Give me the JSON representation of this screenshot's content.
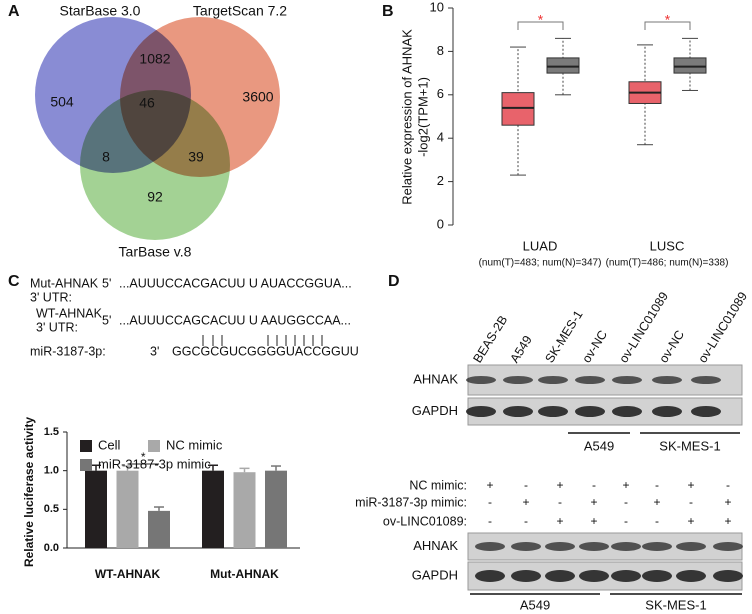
{
  "panel_labels": [
    "A",
    "B",
    "C",
    "D"
  ],
  "venn": {
    "sets": [
      "StarBase 3.0",
      "TargetScan 7.2",
      "TarBase v.8"
    ],
    "colors": [
      "#5b5fc4",
      "#e0704f",
      "#80c06b"
    ],
    "regions": [
      504,
      1082,
      3600,
      46,
      8,
      39,
      92
    ]
  },
  "chart_data": [
    {
      "type": "box",
      "y_label": [
        "Relative expression of AHNAK",
        "-log2(TPM+1)"
      ],
      "categories": [
        "LUAD",
        "LUSC"
      ],
      "category_notes": [
        "(num(T)=483; num(N)=347)",
        "(num(T)=486; num(N)=338)"
      ],
      "series": [
        {
          "color": "#e8636b",
          "values": [
            {
              "min": 2.3,
              "q1": 4.6,
              "median": 5.4,
              "q3": 6.1,
              "max": 8.2
            },
            {
              "min": 3.7,
              "q1": 5.6,
              "median": 6.1,
              "q3": 6.6,
              "max": 8.3
            }
          ]
        },
        {
          "color": "#7a7a7a",
          "values": [
            {
              "min": 6.0,
              "q1": 7.0,
              "median": 7.3,
              "q3": 7.7,
              "max": 8.6
            },
            {
              "min": 6.2,
              "q1": 7.0,
              "median": 7.3,
              "q3": 7.7,
              "max": 8.6
            }
          ]
        }
      ],
      "ylim": [
        0,
        10
      ],
      "yticks": [
        0,
        2,
        4,
        6,
        8,
        10
      ],
      "annotations": [
        "*",
        "*"
      ]
    },
    {
      "type": "bar",
      "y_label": "Relative luciferase activity",
      "categories": [
        "WT-AHNAK",
        "Mut-AHNAK"
      ],
      "series": [
        {
          "name": "Cell",
          "color": "#231f20",
          "values": [
            1.0,
            1.0
          ],
          "errors": [
            0.07,
            0.07
          ]
        },
        {
          "name": "NC mimic",
          "color": "#a9a9a9",
          "values": [
            1.0,
            0.98
          ],
          "errors": [
            0.06,
            0.05
          ]
        },
        {
          "name": "miR-3187-3p mimic",
          "color": "#767676",
          "values": [
            0.48,
            1.0
          ],
          "errors": [
            0.05,
            0.06
          ]
        }
      ],
      "ylim": [
        0,
        1.5
      ],
      "yticks": [
        {
          "value": 0,
          "label": "0.0"
        },
        0.5,
        {
          "value": 1,
          "label": "1.0"
        },
        1.5
      ],
      "annotations": [
        "*"
      ]
    }
  ],
  "sequences": {
    "rows": [
      {
        "name": "Mut-AHNAK",
        "sub": "3' UTR:",
        "end": "5'",
        "seq": "...AUUUCCACGACUU U AUACCGGUA..."
      },
      {
        "name": "WT-AHNAK",
        "sub": "3' UTR:",
        "end": "5'",
        "seq": "...AUUUCCAGCACUU U AAUGGCCAA..."
      },
      {
        "name": "miR-3187-3p:",
        "end": "3'",
        "seq": "GGCGCGUCGGGGUACCGGUU"
      }
    ]
  },
  "blots": {
    "top": {
      "lanes": [
        "BEAS-2B",
        "A549",
        "SK-MES-1",
        "ov-NC",
        "ov-LINC01089",
        "ov-NC",
        "ov-LINC01089"
      ],
      "rows": [
        "AHNAK",
        "GAPDH"
      ],
      "groups": [
        "A549",
        "SK-MES-1"
      ]
    },
    "bottom": {
      "conditions": [
        {
          "label": "NC mimic:",
          "signs": [
            "+",
            "-",
            "+",
            "-",
            "+",
            "-",
            "+",
            "-"
          ]
        },
        {
          "label": "miR-3187-3p mimic:",
          "signs": [
            "-",
            "+",
            "-",
            "+",
            "-",
            "+",
            "-",
            "+"
          ]
        },
        {
          "label": "ov-LINC01089:",
          "signs": [
            "-",
            "-",
            "+",
            "+",
            "-",
            "-",
            "+",
            "+"
          ]
        }
      ],
      "rows": [
        "AHNAK",
        "GAPDH"
      ],
      "groups": [
        "A549",
        "SK-MES-1"
      ]
    }
  }
}
